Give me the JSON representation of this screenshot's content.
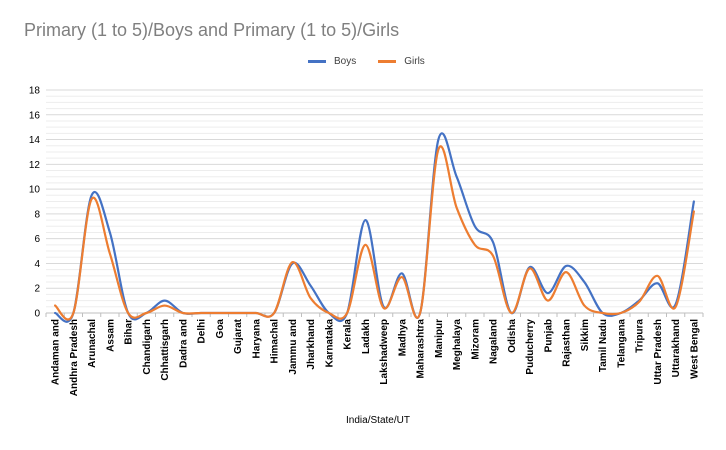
{
  "chart_data": {
    "type": "line",
    "title": "Primary (1 to 5)/Boys and Primary (1 to 5)/Girls",
    "xlabel": "India/State/UT",
    "ylabel": "",
    "ylim": [
      0,
      18
    ],
    "yticks": [
      0,
      2,
      4,
      6,
      8,
      10,
      12,
      14,
      16,
      18
    ],
    "grid": true,
    "legend_position": "top",
    "categories": [
      "Andaman and",
      "Andhra Pradesh",
      "Arunachal",
      "Assam",
      "Bihar",
      "Chandigarh",
      "Chhattisgarh",
      "Dadra and",
      "Delhi",
      "Goa",
      "Gujarat",
      "Haryana",
      "Himachal",
      "Jammu and",
      "Jharkhand",
      "Karnataka",
      "Kerala",
      "Ladakh",
      "Lakshadweep",
      "Madhya",
      "Maharashtra",
      "Manipur",
      "Meghalaya",
      "Mizoram",
      "Nagaland",
      "Odisha",
      "Puducherry",
      "Punjab",
      "Rajasthan",
      "Sikkim",
      "Tamil Nadu",
      "Telangana",
      "Tripura",
      "Uttar Pradesh",
      "Uttarakhand",
      "West Bengal"
    ],
    "series": [
      {
        "name": "Boys",
        "color": "#4472c4",
        "values": [
          0,
          0,
          9.5,
          6.5,
          0,
          0,
          1.0,
          0,
          0,
          0,
          0,
          0,
          0,
          4.0,
          2.2,
          0,
          0,
          7.5,
          0.5,
          3.2,
          0,
          14.0,
          11.0,
          7.0,
          5.7,
          0,
          3.7,
          1.6,
          3.8,
          2.5,
          0,
          0,
          1.0,
          2.4,
          0.7,
          9.0
        ]
      },
      {
        "name": "Girls",
        "color": "#ed7d31",
        "values": [
          0.6,
          0,
          9.2,
          4.8,
          0,
          0,
          0.6,
          0,
          0,
          0,
          0,
          0,
          0,
          4.1,
          1.2,
          0,
          0,
          5.5,
          0.4,
          2.9,
          0,
          13.2,
          8.5,
          5.5,
          4.6,
          0,
          3.6,
          1.0,
          3.3,
          0.6,
          0,
          0,
          0.9,
          3.0,
          0.5,
          8.2
        ]
      }
    ]
  }
}
